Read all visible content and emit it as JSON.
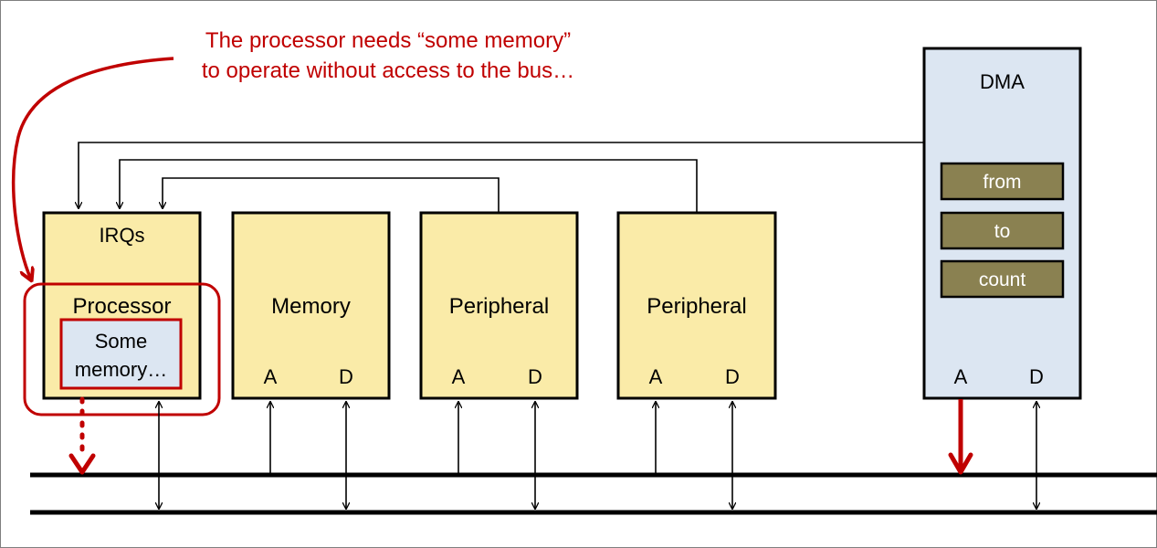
{
  "annotation": {
    "line1": "The processor needs “some memory”",
    "line2": "to operate without access to the bus…"
  },
  "cpu": {
    "irq_label": "IRQs",
    "processor_label": "Processor",
    "some_memory_line1": "Some",
    "some_memory_line2": "memory…"
  },
  "memory": {
    "label": "Memory",
    "addr": "A",
    "data": "D"
  },
  "peripheral1": {
    "label": "Peripheral",
    "addr": "A",
    "data": "D"
  },
  "peripheral2": {
    "label": "Peripheral",
    "addr": "A",
    "data": "D"
  },
  "dma": {
    "label": "DMA",
    "registers": [
      "from",
      "to",
      "count"
    ],
    "addr": "A",
    "data": "D"
  },
  "colors": {
    "module_fill": "#FAEBA8",
    "dma_fill": "#DCE6F2",
    "register_fill": "#8A8151",
    "highlight": "#C00000"
  }
}
